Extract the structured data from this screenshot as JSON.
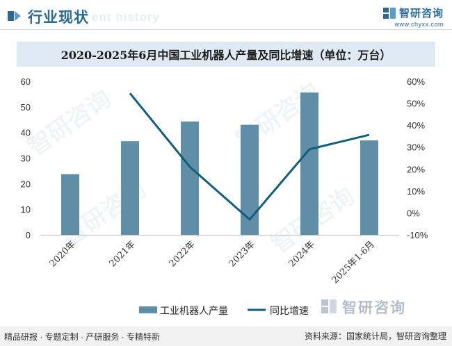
{
  "header": {
    "title": "行业现状",
    "ghost_text": "ent history",
    "brand_name": "智研咨询",
    "brand_url": "www.chyxx.com"
  },
  "watermark_text": "智研咨询",
  "chart_data": {
    "type": "bar",
    "title": "2020-2025年6月中国工业机器人产量及同比增速（单位：万台）",
    "categories": [
      "2020年",
      "2021年",
      "2022年",
      "2023年",
      "2024年",
      "2025年1-6月"
    ],
    "series": [
      {
        "name": "工业机器人产量",
        "type": "bar",
        "axis": "left",
        "color": "#5f8ea6",
        "values": [
          23.7,
          36.6,
          44.3,
          43.0,
          55.6,
          36.9
        ]
      },
      {
        "name": "同比增速",
        "type": "line",
        "axis": "right",
        "color": "#125e7f",
        "values": [
          null,
          0.545,
          0.21,
          -0.03,
          0.29,
          0.356
        ]
      }
    ],
    "y_left": {
      "min": 0,
      "max": 60,
      "ticks": [
        "0",
        "10",
        "20",
        "30",
        "40",
        "50",
        "60"
      ]
    },
    "y_right": {
      "min": -0.1,
      "max": 0.6,
      "ticks": [
        "-10%",
        "0%",
        "10%",
        "20%",
        "30%",
        "40%",
        "50%",
        "60%"
      ]
    },
    "grid": false,
    "legend_position": "bottom"
  },
  "footer": {
    "left": "精品研报 · 专题定制 · 产研服务 · 专精特新",
    "right": "资料来源：国家统计局，智研咨询整理"
  }
}
